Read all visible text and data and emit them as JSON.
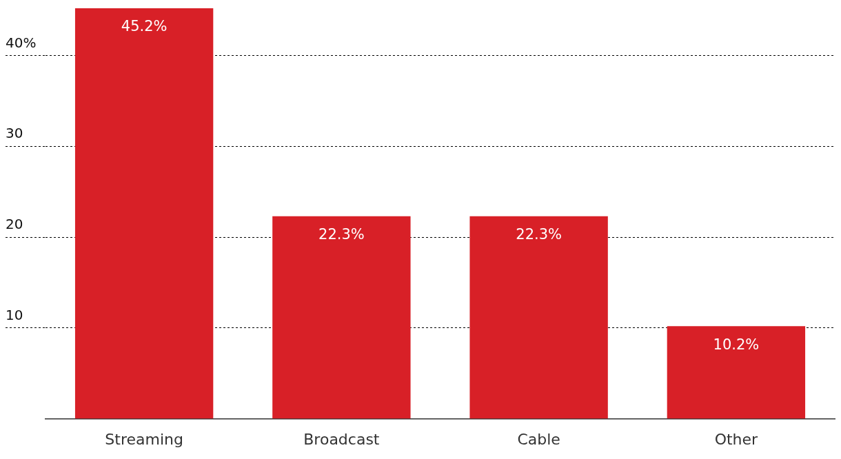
{
  "chart_data": {
    "type": "bar",
    "categories": [
      "Streaming",
      "Broadcast",
      "Cable",
      "Other"
    ],
    "values": [
      45.2,
      22.3,
      22.3,
      10.2
    ],
    "value_labels": [
      "45.2%",
      "22.3%",
      "22.3%",
      "10.2%"
    ],
    "color": "#d82027",
    "ylim": [
      0,
      45.2
    ],
    "yticks": [
      10,
      20,
      30,
      {
        "value": 40,
        "label": "40%"
      }
    ],
    "grid": "y",
    "legend": false
  }
}
